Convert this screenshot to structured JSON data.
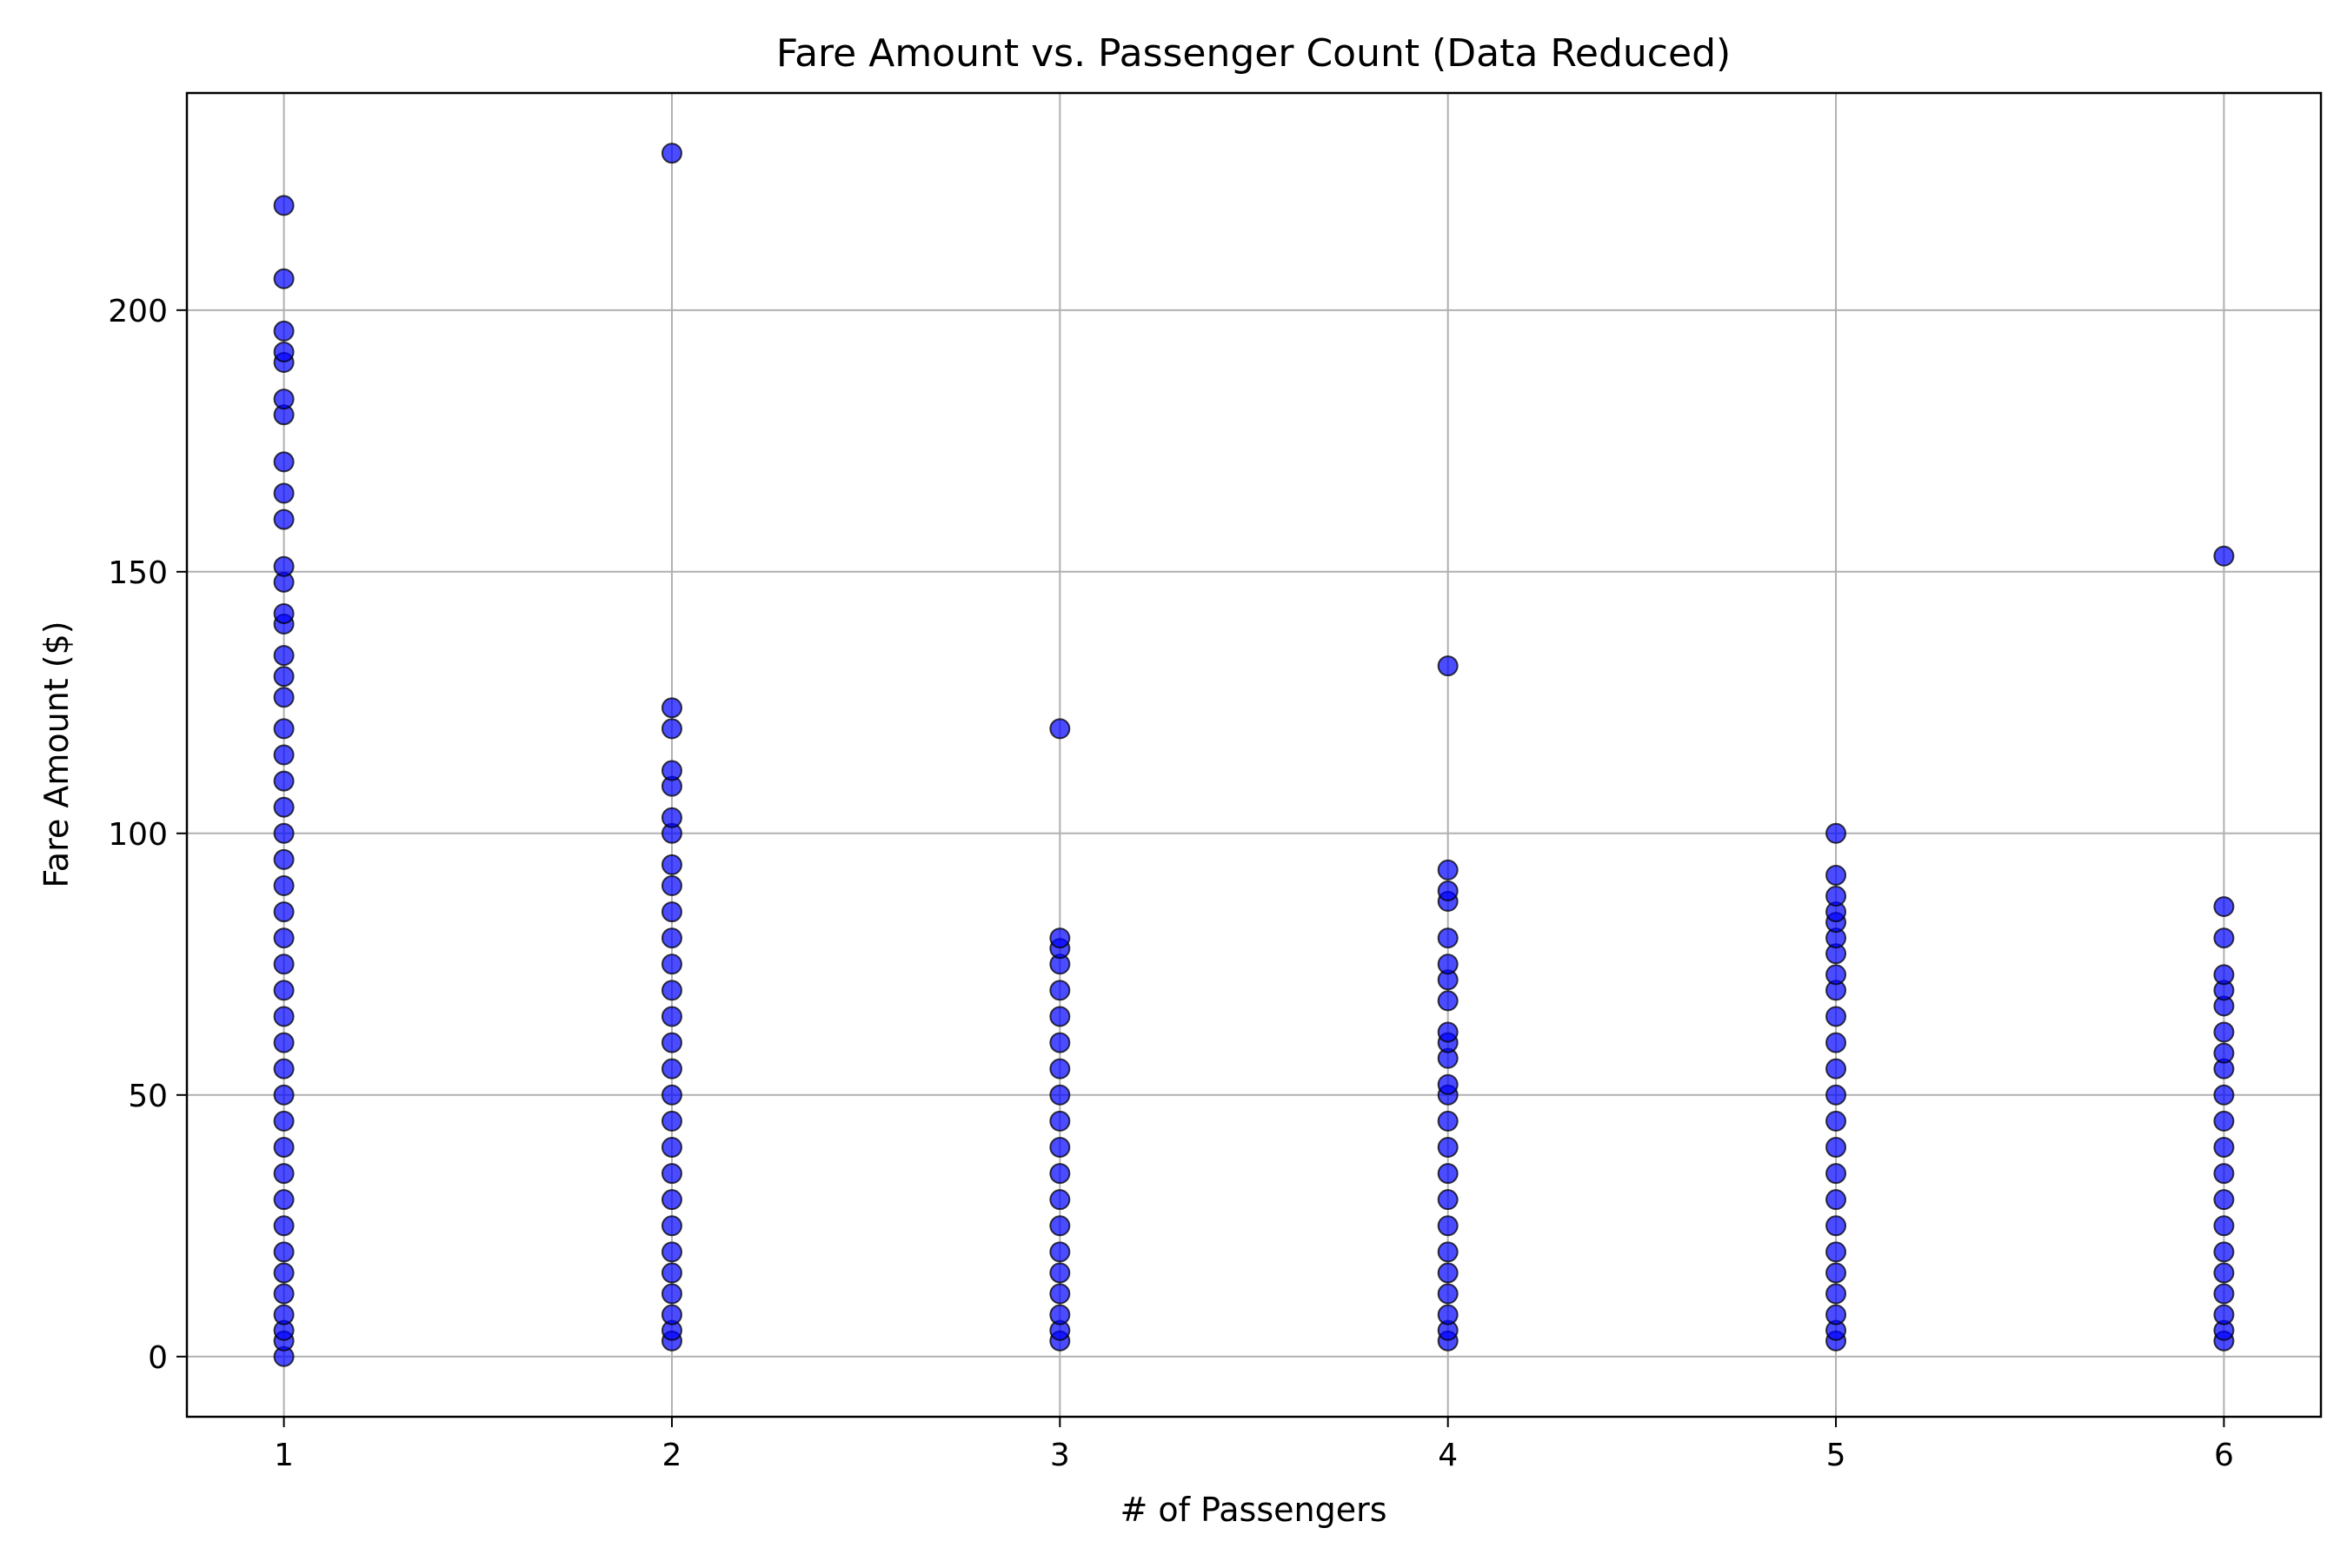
{
  "chart_data": {
    "type": "scatter",
    "title": "Fare Amount vs. Passenger Count (Data Reduced)",
    "xlabel": "# of Passengers",
    "ylabel": "Fare Amount ($)",
    "xlim": [
      0.75,
      6.25
    ],
    "ylim": [
      -11.5,
      241.5
    ],
    "xticks": [
      1,
      2,
      3,
      4,
      5,
      6
    ],
    "yticks": [
      0,
      50,
      100,
      150,
      200
    ],
    "grid": true,
    "legend": "none",
    "marker_color": "#0000ff",
    "marker_edge_color": "#000000",
    "grid_color": "#b0b0b0",
    "series": [
      {
        "values": [
          {
            "x": 1,
            "y": 0
          },
          {
            "x": 1,
            "y": 3
          },
          {
            "x": 1,
            "y": 5
          },
          {
            "x": 1,
            "y": 8
          },
          {
            "x": 1,
            "y": 12
          },
          {
            "x": 1,
            "y": 16
          },
          {
            "x": 1,
            "y": 20
          },
          {
            "x": 1,
            "y": 25
          },
          {
            "x": 1,
            "y": 30
          },
          {
            "x": 1,
            "y": 35
          },
          {
            "x": 1,
            "y": 40
          },
          {
            "x": 1,
            "y": 45
          },
          {
            "x": 1,
            "y": 50
          },
          {
            "x": 1,
            "y": 55
          },
          {
            "x": 1,
            "y": 60
          },
          {
            "x": 1,
            "y": 65
          },
          {
            "x": 1,
            "y": 70
          },
          {
            "x": 1,
            "y": 75
          },
          {
            "x": 1,
            "y": 80
          },
          {
            "x": 1,
            "y": 85
          },
          {
            "x": 1,
            "y": 90
          },
          {
            "x": 1,
            "y": 95
          },
          {
            "x": 1,
            "y": 100
          },
          {
            "x": 1,
            "y": 105
          },
          {
            "x": 1,
            "y": 110
          },
          {
            "x": 1,
            "y": 115
          },
          {
            "x": 1,
            "y": 120
          },
          {
            "x": 1,
            "y": 126
          },
          {
            "x": 1,
            "y": 130
          },
          {
            "x": 1,
            "y": 134
          },
          {
            "x": 1,
            "y": 140
          },
          {
            "x": 1,
            "y": 142
          },
          {
            "x": 1,
            "y": 148
          },
          {
            "x": 1,
            "y": 151
          },
          {
            "x": 1,
            "y": 160
          },
          {
            "x": 1,
            "y": 165
          },
          {
            "x": 1,
            "y": 171
          },
          {
            "x": 1,
            "y": 180
          },
          {
            "x": 1,
            "y": 183
          },
          {
            "x": 1,
            "y": 190
          },
          {
            "x": 1,
            "y": 192
          },
          {
            "x": 1,
            "y": 196
          },
          {
            "x": 1,
            "y": 206
          },
          {
            "x": 1,
            "y": 220
          },
          {
            "x": 2,
            "y": 3
          },
          {
            "x": 2,
            "y": 5
          },
          {
            "x": 2,
            "y": 8
          },
          {
            "x": 2,
            "y": 12
          },
          {
            "x": 2,
            "y": 16
          },
          {
            "x": 2,
            "y": 20
          },
          {
            "x": 2,
            "y": 25
          },
          {
            "x": 2,
            "y": 30
          },
          {
            "x": 2,
            "y": 35
          },
          {
            "x": 2,
            "y": 40
          },
          {
            "x": 2,
            "y": 45
          },
          {
            "x": 2,
            "y": 50
          },
          {
            "x": 2,
            "y": 55
          },
          {
            "x": 2,
            "y": 60
          },
          {
            "x": 2,
            "y": 65
          },
          {
            "x": 2,
            "y": 70
          },
          {
            "x": 2,
            "y": 75
          },
          {
            "x": 2,
            "y": 80
          },
          {
            "x": 2,
            "y": 85
          },
          {
            "x": 2,
            "y": 90
          },
          {
            "x": 2,
            "y": 94
          },
          {
            "x": 2,
            "y": 100
          },
          {
            "x": 2,
            "y": 103
          },
          {
            "x": 2,
            "y": 109
          },
          {
            "x": 2,
            "y": 112
          },
          {
            "x": 2,
            "y": 120
          },
          {
            "x": 2,
            "y": 124
          },
          {
            "x": 2,
            "y": 230
          },
          {
            "x": 3,
            "y": 3
          },
          {
            "x": 3,
            "y": 5
          },
          {
            "x": 3,
            "y": 8
          },
          {
            "x": 3,
            "y": 12
          },
          {
            "x": 3,
            "y": 16
          },
          {
            "x": 3,
            "y": 20
          },
          {
            "x": 3,
            "y": 25
          },
          {
            "x": 3,
            "y": 30
          },
          {
            "x": 3,
            "y": 35
          },
          {
            "x": 3,
            "y": 40
          },
          {
            "x": 3,
            "y": 45
          },
          {
            "x": 3,
            "y": 50
          },
          {
            "x": 3,
            "y": 55
          },
          {
            "x": 3,
            "y": 60
          },
          {
            "x": 3,
            "y": 65
          },
          {
            "x": 3,
            "y": 70
          },
          {
            "x": 3,
            "y": 75
          },
          {
            "x": 3,
            "y": 78
          },
          {
            "x": 3,
            "y": 80
          },
          {
            "x": 3,
            "y": 120
          },
          {
            "x": 4,
            "y": 3
          },
          {
            "x": 4,
            "y": 5
          },
          {
            "x": 4,
            "y": 8
          },
          {
            "x": 4,
            "y": 12
          },
          {
            "x": 4,
            "y": 16
          },
          {
            "x": 4,
            "y": 20
          },
          {
            "x": 4,
            "y": 25
          },
          {
            "x": 4,
            "y": 30
          },
          {
            "x": 4,
            "y": 35
          },
          {
            "x": 4,
            "y": 40
          },
          {
            "x": 4,
            "y": 45
          },
          {
            "x": 4,
            "y": 50
          },
          {
            "x": 4,
            "y": 52
          },
          {
            "x": 4,
            "y": 57
          },
          {
            "x": 4,
            "y": 60
          },
          {
            "x": 4,
            "y": 62
          },
          {
            "x": 4,
            "y": 68
          },
          {
            "x": 4,
            "y": 72
          },
          {
            "x": 4,
            "y": 75
          },
          {
            "x": 4,
            "y": 80
          },
          {
            "x": 4,
            "y": 87
          },
          {
            "x": 4,
            "y": 89
          },
          {
            "x": 4,
            "y": 93
          },
          {
            "x": 4,
            "y": 132
          },
          {
            "x": 5,
            "y": 3
          },
          {
            "x": 5,
            "y": 5
          },
          {
            "x": 5,
            "y": 8
          },
          {
            "x": 5,
            "y": 12
          },
          {
            "x": 5,
            "y": 16
          },
          {
            "x": 5,
            "y": 20
          },
          {
            "x": 5,
            "y": 25
          },
          {
            "x": 5,
            "y": 30
          },
          {
            "x": 5,
            "y": 35
          },
          {
            "x": 5,
            "y": 40
          },
          {
            "x": 5,
            "y": 45
          },
          {
            "x": 5,
            "y": 50
          },
          {
            "x": 5,
            "y": 55
          },
          {
            "x": 5,
            "y": 60
          },
          {
            "x": 5,
            "y": 65
          },
          {
            "x": 5,
            "y": 70
          },
          {
            "x": 5,
            "y": 73
          },
          {
            "x": 5,
            "y": 77
          },
          {
            "x": 5,
            "y": 80
          },
          {
            "x": 5,
            "y": 83
          },
          {
            "x": 5,
            "y": 85
          },
          {
            "x": 5,
            "y": 88
          },
          {
            "x": 5,
            "y": 92
          },
          {
            "x": 5,
            "y": 100
          },
          {
            "x": 6,
            "y": 3
          },
          {
            "x": 6,
            "y": 5
          },
          {
            "x": 6,
            "y": 8
          },
          {
            "x": 6,
            "y": 12
          },
          {
            "x": 6,
            "y": 16
          },
          {
            "x": 6,
            "y": 20
          },
          {
            "x": 6,
            "y": 25
          },
          {
            "x": 6,
            "y": 30
          },
          {
            "x": 6,
            "y": 35
          },
          {
            "x": 6,
            "y": 40
          },
          {
            "x": 6,
            "y": 45
          },
          {
            "x": 6,
            "y": 50
          },
          {
            "x": 6,
            "y": 55
          },
          {
            "x": 6,
            "y": 58
          },
          {
            "x": 6,
            "y": 62
          },
          {
            "x": 6,
            "y": 67
          },
          {
            "x": 6,
            "y": 70
          },
          {
            "x": 6,
            "y": 73
          },
          {
            "x": 6,
            "y": 80
          },
          {
            "x": 6,
            "y": 86
          },
          {
            "x": 6,
            "y": 153
          }
        ]
      }
    ]
  }
}
